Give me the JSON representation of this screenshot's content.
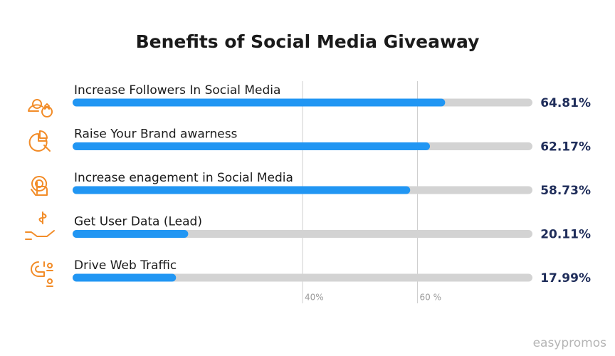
{
  "chart_data": {
    "type": "bar",
    "orientation": "horizontal",
    "title": "Benefits of Social Media Giveaway",
    "categories": [
      "Increase Followers In Social Media",
      "Raise Your Brand awarness",
      "Increase enagement in Social Media",
      "Get User Data (Lead)",
      "Drive Web Traffic"
    ],
    "values": [
      64.81,
      62.17,
      58.73,
      20.11,
      17.99
    ],
    "value_labels": [
      "64.81%",
      "62.17%",
      "58.73%",
      "20.11%",
      "17.99%"
    ],
    "color": "#2196f3",
    "xlim": [
      0,
      80
    ],
    "xticks": [
      {
        "value": 40,
        "label": "40%"
      },
      {
        "value": 60,
        "label": "60 %"
      }
    ],
    "grid": true,
    "watermark": "easypromos"
  }
}
